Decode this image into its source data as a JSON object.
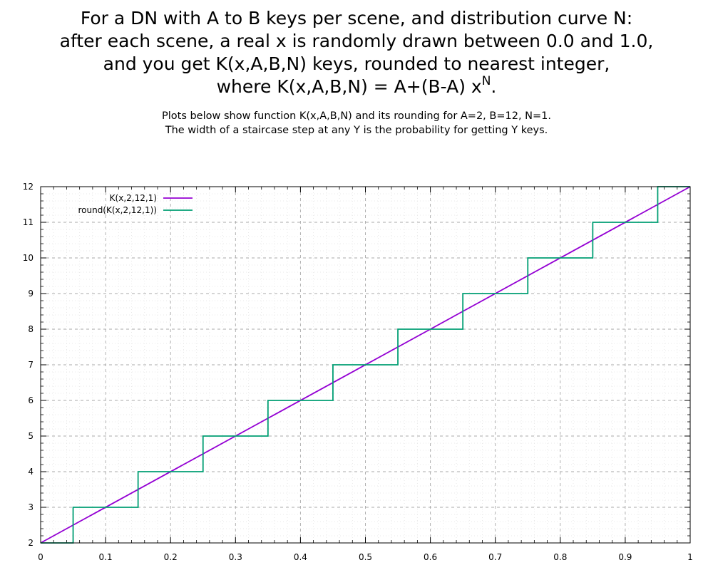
{
  "title": {
    "line1": "For a DN with A to B keys per scene, and distribution curve N:",
    "line2": "after each scene, a real x is randomly drawn between 0.0 and 1.0,",
    "line3": "and you get K(x,A,B,N) keys, rounded to nearest integer,",
    "line4_main": "where K(x,A,B,N) = A+(B-A) x",
    "line4_sup": "N",
    "line4_end": "."
  },
  "subtitle": {
    "line1": "Plots below show function K(x,A,B,N) and its rounding for A=2, B=12, N=1.",
    "line2": "The width of a staircase step at any Y is the probability for getting Y keys."
  },
  "chart_data": {
    "type": "line",
    "title": "",
    "xlabel": "",
    "ylabel": "",
    "xlim": [
      0,
      1
    ],
    "ylim": [
      2,
      12
    ],
    "xticks": [
      "0",
      "0.1",
      "0.2",
      "0.3",
      "0.4",
      "0.5",
      "0.6",
      "0.7",
      "0.8",
      "0.9",
      "1"
    ],
    "yticks": [
      "2",
      "3",
      "4",
      "5",
      "6",
      "7",
      "8",
      "9",
      "10",
      "11",
      "12"
    ],
    "grid": true,
    "legend_position": "top-left",
    "series": [
      {
        "name": "K(x,2,12,1)",
        "color": "#9400d3",
        "kind": "line",
        "x": [
          0,
          1
        ],
        "y": [
          2,
          12
        ]
      },
      {
        "name": "round(K(x,2,12,1))",
        "color": "#009e73",
        "kind": "step",
        "x": [
          0,
          0.05,
          0.05,
          0.15,
          0.15,
          0.25,
          0.25,
          0.35,
          0.35,
          0.45,
          0.45,
          0.55,
          0.55,
          0.65,
          0.65,
          0.75,
          0.75,
          0.85,
          0.85,
          0.95,
          0.95,
          1
        ],
        "y": [
          2,
          2,
          3,
          3,
          4,
          4,
          5,
          5,
          6,
          6,
          7,
          7,
          8,
          8,
          9,
          9,
          10,
          10,
          11,
          11,
          12,
          12
        ]
      }
    ]
  }
}
